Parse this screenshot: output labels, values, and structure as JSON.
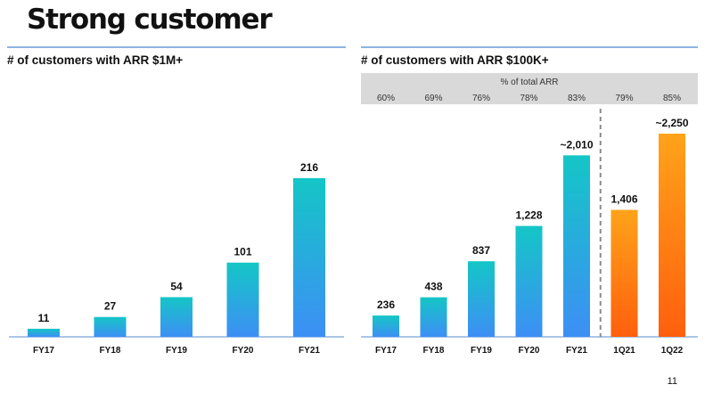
{
  "slide": {
    "title": "Strong customer",
    "page_number": "11"
  },
  "colors": {
    "bar_top": "#14c6c6",
    "bar_bottom": "#3d8ff5",
    "quarter_top": "#ffa31a",
    "quarter_bottom": "#ff5f0d",
    "pct_band": "#d9d9d9",
    "rule": "#8db4e2"
  },
  "chart_data": [
    {
      "type": "bar",
      "title": "# of customers with ARR $1M+",
      "categories": [
        "FY17",
        "FY18",
        "FY19",
        "FY20",
        "FY21"
      ],
      "values": [
        11,
        27,
        54,
        101,
        216
      ],
      "value_labels": [
        "11",
        "27",
        "54",
        "101",
        "216"
      ],
      "ylim": [
        0,
        240
      ],
      "xlabel": "",
      "ylabel": ""
    },
    {
      "type": "bar",
      "title": "# of customers with ARR $100K+",
      "categories": [
        "FY17",
        "FY18",
        "FY19",
        "FY20",
        "FY21",
        "1Q21",
        "1Q22"
      ],
      "values": [
        236,
        438,
        837,
        1228,
        2010,
        1406,
        2250
      ],
      "value_labels": [
        "236",
        "438",
        "837",
        "1,228",
        "~2,010",
        "1,406",
        "~2,250"
      ],
      "series_group": [
        "annual",
        "annual",
        "annual",
        "annual",
        "annual",
        "quarterly",
        "quarterly"
      ],
      "ylim": [
        0,
        2500
      ],
      "pct_band_label": "% of total ARR",
      "pct_of_total_arr": [
        "60%",
        "69%",
        "76%",
        "78%",
        "83%",
        "79%",
        "85%"
      ],
      "divider_after_index": 4,
      "xlabel": "",
      "ylabel": ""
    }
  ]
}
